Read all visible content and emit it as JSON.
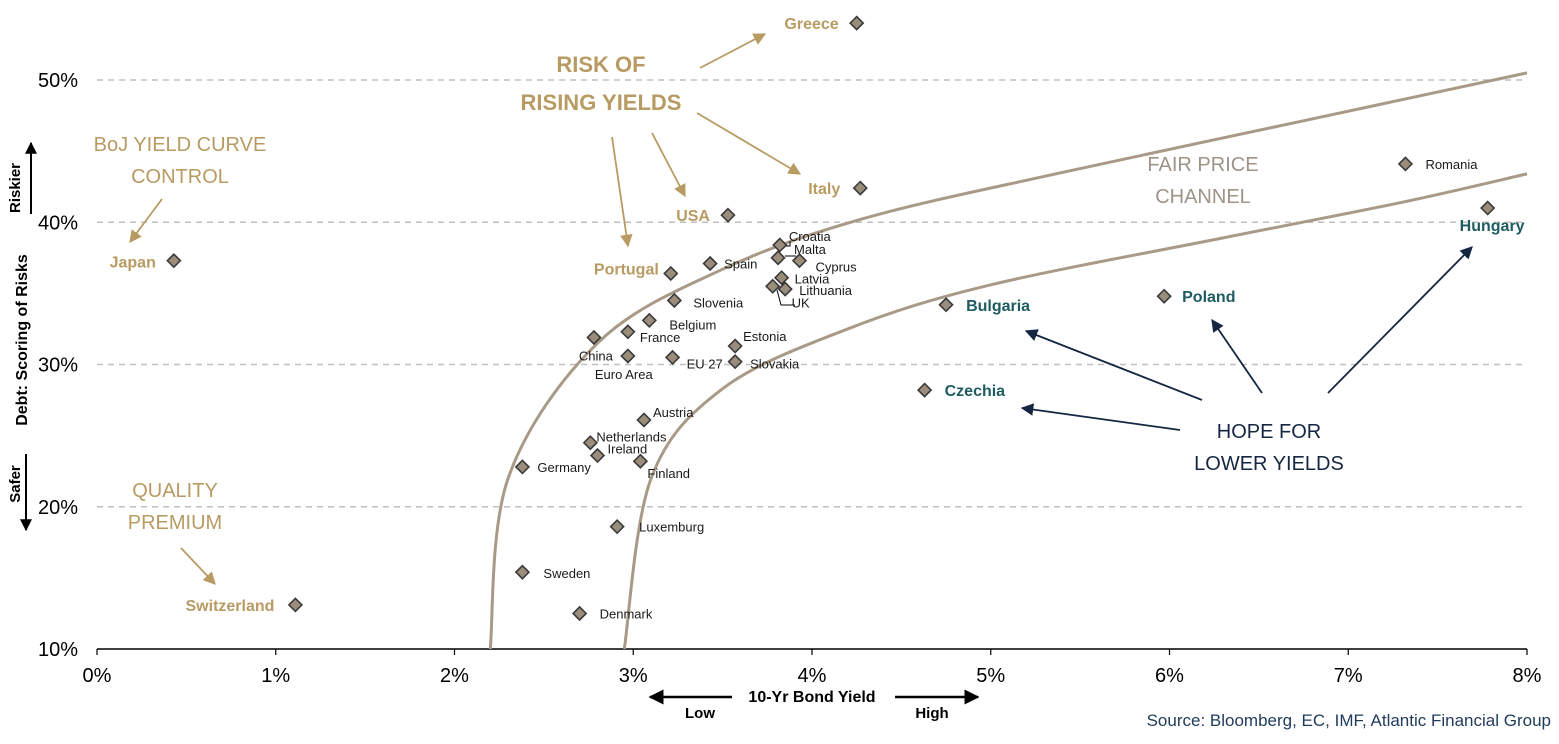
{
  "chart_data": {
    "type": "scatter",
    "x_axis": {
      "title": "10-Yr Bond Yield",
      "low_label": "Low",
      "high_label": "High",
      "range": [
        0,
        8
      ],
      "ticks": [
        0,
        1,
        2,
        3,
        4,
        5,
        6,
        7,
        8
      ],
      "tick_labels": [
        "0%",
        "1%",
        "2%",
        "3%",
        "4%",
        "5%",
        "6%",
        "7%",
        "8%"
      ]
    },
    "y_axis": {
      "title": "Debt: Scoring of Risks",
      "top_label": "Riskier",
      "bottom_label": "Safer",
      "range": [
        10,
        55
      ],
      "ticks": [
        10,
        20,
        30,
        40,
        50
      ],
      "tick_labels": [
        "10%",
        "20%",
        "30%",
        "40%",
        "50%"
      ],
      "dashed_gridlines": [
        20,
        30,
        40,
        50
      ]
    },
    "points": [
      {
        "name": "Greece",
        "x": 4.25,
        "y": 54.0,
        "style": "gold"
      },
      {
        "name": "Italy",
        "x": 4.27,
        "y": 42.4,
        "style": "gold"
      },
      {
        "name": "USA",
        "x": 3.53,
        "y": 40.5,
        "style": "gold"
      },
      {
        "name": "Japan",
        "x": 0.43,
        "y": 37.3,
        "style": "gold"
      },
      {
        "name": "Portugal",
        "x": 3.21,
        "y": 36.4,
        "style": "gold"
      },
      {
        "name": "Switzerland",
        "x": 1.11,
        "y": 13.1,
        "style": "gold"
      },
      {
        "name": "Romania",
        "x": 7.32,
        "y": 44.1,
        "style": "plain"
      },
      {
        "name": "Hungary",
        "x": 7.78,
        "y": 41.0,
        "style": "teal"
      },
      {
        "name": "Poland",
        "x": 5.97,
        "y": 34.8,
        "style": "teal"
      },
      {
        "name": "Bulgaria",
        "x": 4.75,
        "y": 34.2,
        "style": "teal"
      },
      {
        "name": "Czechia",
        "x": 4.63,
        "y": 28.2,
        "style": "teal"
      },
      {
        "name": "Croatia",
        "x": 3.82,
        "y": 38.4,
        "style": "plain"
      },
      {
        "name": "Malta",
        "x": 3.81,
        "y": 37.5,
        "style": "plain"
      },
      {
        "name": "Cyprus",
        "x": 3.93,
        "y": 37.3,
        "style": "plain"
      },
      {
        "name": "Spain",
        "x": 3.43,
        "y": 37.1,
        "style": "plain"
      },
      {
        "name": "Latvia",
        "x": 3.83,
        "y": 36.1,
        "style": "plain"
      },
      {
        "name": "Lithuania",
        "x": 3.85,
        "y": 35.3,
        "style": "plain"
      },
      {
        "name": "UK",
        "x": 3.78,
        "y": 35.5,
        "style": "plain"
      },
      {
        "name": "Slovenia",
        "x": 3.23,
        "y": 34.5,
        "style": "plain"
      },
      {
        "name": "Belgium",
        "x": 3.09,
        "y": 33.1,
        "style": "plain"
      },
      {
        "name": "France",
        "x": 2.97,
        "y": 32.3,
        "style": "plain"
      },
      {
        "name": "China",
        "x": 2.78,
        "y": 31.9,
        "style": "plain"
      },
      {
        "name": "Estonia",
        "x": 3.57,
        "y": 31.3,
        "style": "plain"
      },
      {
        "name": "Euro Area",
        "x": 2.97,
        "y": 30.6,
        "style": "plain"
      },
      {
        "name": "EU 27",
        "x": 3.22,
        "y": 30.5,
        "style": "plain"
      },
      {
        "name": "Slovakia",
        "x": 3.57,
        "y": 30.2,
        "style": "plain"
      },
      {
        "name": "Austria",
        "x": 3.06,
        "y": 26.1,
        "style": "plain"
      },
      {
        "name": "Netherlands",
        "x": 2.76,
        "y": 24.5,
        "style": "plain"
      },
      {
        "name": "Ireland",
        "x": 2.8,
        "y": 23.6,
        "style": "plain"
      },
      {
        "name": "Finland",
        "x": 3.04,
        "y": 23.2,
        "style": "plain"
      },
      {
        "name": "Germany",
        "x": 2.38,
        "y": 22.8,
        "style": "plain"
      },
      {
        "name": "Luxemburg",
        "x": 2.91,
        "y": 18.6,
        "style": "plain"
      },
      {
        "name": "Sweden",
        "x": 2.38,
        "y": 15.4,
        "style": "plain"
      },
      {
        "name": "Denmark",
        "x": 2.7,
        "y": 12.5,
        "style": "plain"
      }
    ],
    "channel": {
      "label_line1": "FAIR PRICE",
      "label_line2": "CHANNEL",
      "upper_curve": {
        "x0": 2.2,
        "y0": 10,
        "points": [
          [
            2.3,
            22.0
          ],
          [
            2.8,
            31.5
          ],
          [
            3.5,
            36.7
          ],
          [
            4.3,
            40.3
          ],
          [
            5.4,
            43.5
          ],
          [
            6.7,
            47.0
          ],
          [
            8.0,
            50.5
          ]
        ]
      },
      "lower_curve": {
        "x0": 2.95,
        "y0": 10,
        "points": [
          [
            3.1,
            22.0
          ],
          [
            3.5,
            28.3
          ],
          [
            4.2,
            32.5
          ],
          [
            5.0,
            35.6
          ],
          [
            6.3,
            38.9
          ],
          [
            7.3,
            41.4
          ],
          [
            8.0,
            43.4
          ]
        ]
      }
    },
    "annotations": {
      "risk_line1": "RISK OF",
      "risk_line2": "RISING YIELDS",
      "boj_line1": "BoJ YIELD CURVE",
      "boj_line2": "CONTROL",
      "quality_line1": "QUALITY",
      "quality_line2": "PREMIUM",
      "hope_line1": "HOPE FOR",
      "hope_line2": "LOWER YIELDS"
    },
    "grid": "horizontal dashed",
    "legend": "none"
  },
  "source": "Source: Bloomberg, EC, IMF, Atlantic Financial Group",
  "colors": {
    "gold": "#b89a63",
    "teal": "#1f5c60",
    "navy": "#142641",
    "channel": "#a89a86",
    "marker_fill": "#9b8d7c",
    "marker_stroke": "#3a3a3a",
    "grid": "#bfbfbf"
  }
}
